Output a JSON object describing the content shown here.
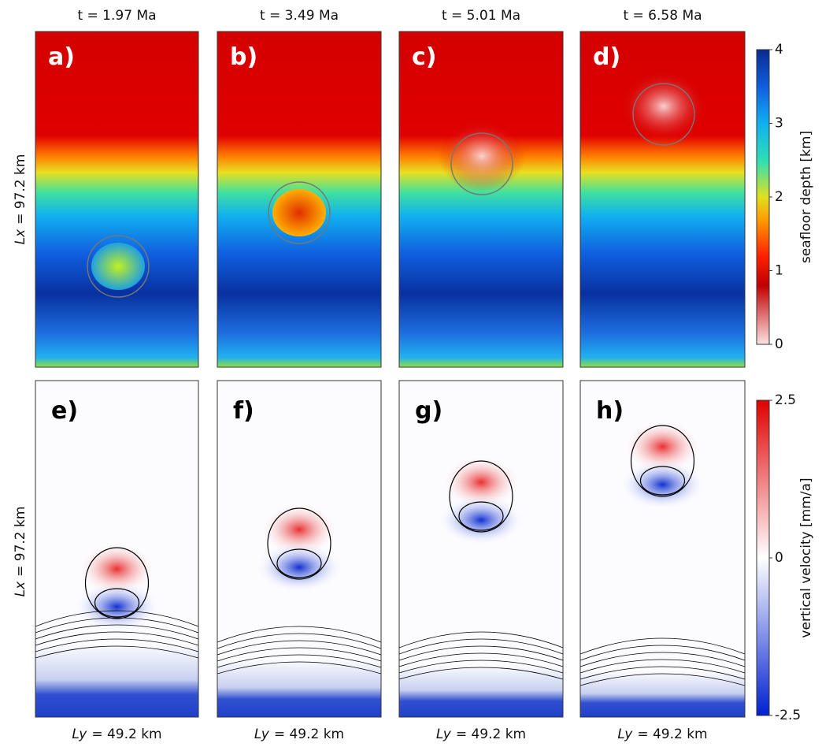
{
  "columns": [
    "t = 1.97 Ma",
    "t = 3.49 Ma",
    "t = 5.01 Ma",
    "t = 6.58 Ma"
  ],
  "panels": {
    "top": [
      "a)",
      "b)",
      "c)",
      "d)"
    ],
    "bottom": [
      "e)",
      "f)",
      "g)",
      "h)"
    ]
  },
  "row_labels": [
    {
      "var": "Lx",
      "text": "= 97.2 km"
    },
    {
      "var": "Lx",
      "text": "= 97.2 km"
    }
  ],
  "column_labels": [
    {
      "var": "Ly",
      "text": "= 49.2 km"
    },
    {
      "var": "Ly",
      "text": "= 49.2 km"
    },
    {
      "var": "Ly",
      "text": "= 49.2 km"
    },
    {
      "var": "Ly",
      "text": "= 49.2 km"
    }
  ],
  "colorbars": [
    {
      "label": "seafloor depth [km]",
      "lim": [
        0,
        4
      ],
      "ticks": [
        0,
        1,
        2,
        3,
        4
      ]
    },
    {
      "label": "vertical velocity [mm/a]",
      "lim": [
        -2.5,
        2.5
      ],
      "ticks": [
        -2.5,
        0,
        2.5
      ]
    }
  ]
}
